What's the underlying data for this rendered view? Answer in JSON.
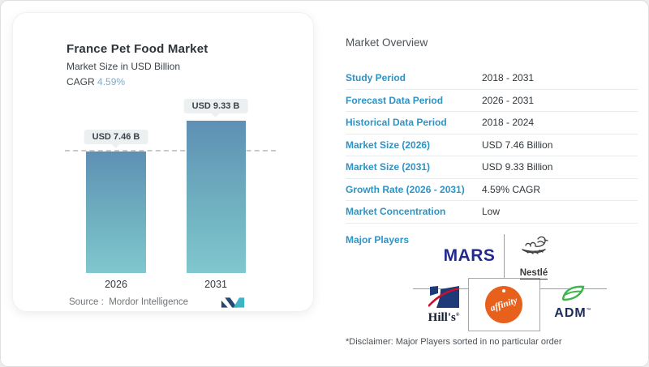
{
  "left_card": {
    "title": "France Pet Food Market",
    "subtitle": "Market Size in USD Billion",
    "cagr_label": "CAGR",
    "cagr_value": "4.59%",
    "source_label": "Source :",
    "source_value": "Mordor Intelligence"
  },
  "chart_data": {
    "type": "bar",
    "title": "France Pet Food Market",
    "subtitle": "Market Size in USD Billion",
    "cagr": "4.59%",
    "categories": [
      "2026",
      "2031"
    ],
    "values": [
      7.46,
      9.33
    ],
    "bar_labels": [
      "USD 7.46 B",
      "USD 9.33 B"
    ],
    "unit": "USD Billion",
    "ylim": [
      0,
      10
    ],
    "reference_line": "dashed horizontal line at 7.46 (2026 level)",
    "bar_color_top": "#5e90b4",
    "bar_color_bottom": "#80c7ce"
  },
  "right_panel": {
    "title": "Market Overview",
    "rows": [
      {
        "label": "Study Period",
        "value": "2018 - 2031"
      },
      {
        "label": "Forecast Data Period",
        "value": "2026 - 2031"
      },
      {
        "label": "Historical Data Period",
        "value": "2018 - 2024"
      },
      {
        "label": "Market Size (2026)",
        "value": "USD 7.46 Billion"
      },
      {
        "label": "Market Size (2031)",
        "value": "USD 9.33 Billion"
      },
      {
        "label": "Growth Rate (2026 - 2031)",
        "value": "4.59% CAGR"
      },
      {
        "label": "Market Concentration",
        "value": "Low"
      }
    ],
    "major_players_label": "Major Players",
    "players": {
      "mars": {
        "name": "MARS",
        "color": "#232a8d"
      },
      "nestle": {
        "name": "Nestlé",
        "color": "#3a3a3a"
      },
      "hills": {
        "name": "Hill's",
        "mark": "®",
        "color": "#1e3a78",
        "red": "#c8102e"
      },
      "affinity": {
        "name": "affinity",
        "color": "#e8611c"
      },
      "adm": {
        "name": "ADM",
        "mark": "™",
        "color": "#1d2a5a",
        "green": "#3cb54a"
      }
    },
    "disclaimer": "*Disclaimer: Major Players sorted in no particular order"
  },
  "colors": {
    "label_blue": "#2e93c5",
    "cagr_blue": "#86a9c3",
    "bar_top": "#5e90b4",
    "bar_bottom": "#80c7ce",
    "chip_bg": "#edf0f1",
    "grid_gray": "#9aa0a3"
  }
}
